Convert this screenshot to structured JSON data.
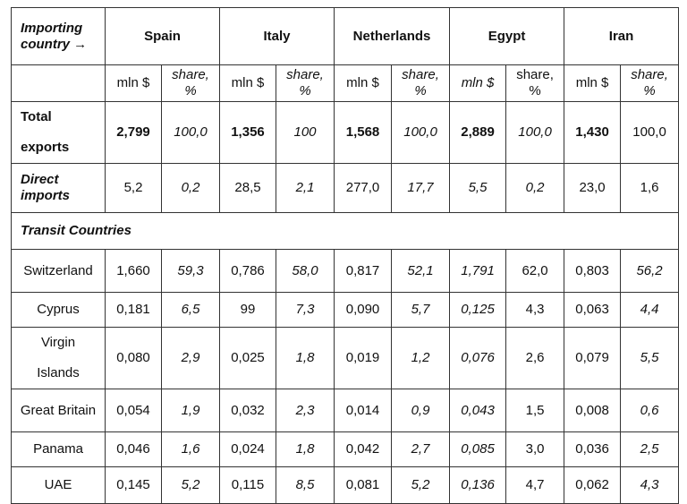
{
  "header": {
    "corner": "Importing country →",
    "countries": [
      "Spain",
      "Italy",
      "Netherlands",
      "Egypt",
      "Iran"
    ],
    "units": [
      "mln $",
      "share, %",
      "mln $",
      "share, %",
      "mln $",
      "share, %",
      "mln $",
      "share, %",
      "mln $",
      "share, %"
    ]
  },
  "table": {
    "summary_rows": [
      {
        "label": "Total exports",
        "cells": [
          "2,799",
          "100,0",
          "1,356",
          "100",
          "1,568",
          "100,0",
          "2,889",
          "100,0",
          "1,430",
          "100,0"
        ]
      },
      {
        "label": "Direct imports",
        "cells": [
          "5,2",
          "0,2",
          "28,5",
          "2,1",
          "277,0",
          "17,7",
          "5,5",
          "0,2",
          "23,0",
          "1,6"
        ]
      }
    ],
    "section_title": "Transit Countries",
    "transit_rows": [
      {
        "label": "Switzerland",
        "cells": [
          "1,660",
          "59,3",
          "0,786",
          "58,0",
          "0,817",
          "52,1",
          "1,791",
          "62,0",
          "0,803",
          "56,2"
        ]
      },
      {
        "label": "Cyprus",
        "cells": [
          "0,181",
          "6,5",
          "99",
          "7,3",
          "0,090",
          "5,7",
          "0,125",
          "4,3",
          "0,063",
          "4,4"
        ]
      },
      {
        "label": "Virgin Islands",
        "cells": [
          "0,080",
          "2,9",
          "0,025",
          "1,8",
          "0,019",
          "1,2",
          "0,076",
          "2,6",
          "0,079",
          "5,5"
        ]
      },
      {
        "label": "Great Britain",
        "cells": [
          "0,054",
          "1,9",
          "0,032",
          "2,3",
          "0,014",
          "0,9",
          "0,043",
          "1,5",
          "0,008",
          "0,6"
        ]
      },
      {
        "label": "Panama",
        "cells": [
          "0,046",
          "1,6",
          "0,024",
          "1,8",
          "0,042",
          "2,7",
          "0,085",
          "3,0",
          "0,036",
          "2,5"
        ]
      },
      {
        "label": "UAE",
        "cells": [
          "0,145",
          "5,2",
          "0,115",
          "8,5",
          "0,081",
          "5,2",
          "0,136",
          "4,7",
          "0,062",
          "4,3"
        ]
      }
    ]
  }
}
